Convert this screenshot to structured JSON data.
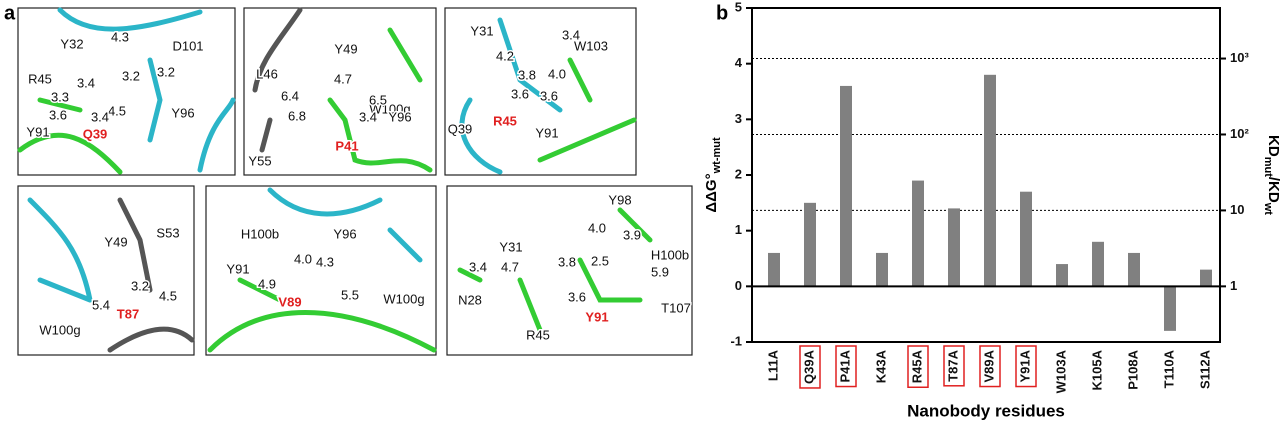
{
  "panel_a": {
    "letter": "a",
    "panels": [
      {
        "labels": [
          "Y32",
          "D101",
          "R45",
          "Y96",
          "Y91",
          "Q39",
          "4.3",
          "3.4",
          "3.2",
          "3.2",
          "3.3",
          "4.5",
          "3.6",
          "3.4"
        ],
        "key": "Q39"
      },
      {
        "labels": [
          "Y49",
          "L46",
          "W100g",
          "Y55",
          "P41",
          "4.7",
          "6.4",
          "6.5",
          "6.8",
          "3.4",
          "Y96"
        ],
        "key": "P41"
      },
      {
        "labels": [
          "Y31",
          "3.4",
          "W103",
          "4.2",
          "3.8",
          "4.0",
          "3.6",
          "3.6",
          "Q39",
          "R45",
          "Y91"
        ],
        "key": "R45"
      },
      {
        "labels": [
          "Y49",
          "S53",
          "3.2",
          "W100g",
          "5.4",
          "4.5",
          "T87"
        ],
        "key": "T87"
      },
      {
        "labels": [
          "H100b",
          "Y96",
          "4.0",
          "4.3",
          "Y91",
          "4.9",
          "V89",
          "5.5",
          "W100g"
        ],
        "key": "V89"
      },
      {
        "labels": [
          "Y98",
          "Y31",
          "4.0",
          "3.9",
          "H100b",
          "2.5",
          "3.8",
          "3.4",
          "4.7",
          "5.9",
          "N28",
          "3.6",
          "Y91",
          "T107",
          "R45"
        ],
        "key": "Y91"
      }
    ]
  },
  "chart_data": {
    "type": "bar",
    "letter": "b",
    "ylabel": "ΔΔG°",
    "ylabel_sub": "wt-mut",
    "y2label": [
      "KD",
      "mut",
      "/KD",
      "wt"
    ],
    "xlabel": "Nanobody residues",
    "categories": [
      "L11A",
      "Q39A",
      "P41A",
      "K43A",
      "R45A",
      "T87A",
      "V89A",
      "Y91A",
      "W103A",
      "K105A",
      "P108A",
      "T110A",
      "S112A"
    ],
    "boxed": [
      false,
      true,
      true,
      false,
      true,
      true,
      true,
      true,
      false,
      false,
      false,
      false,
      false
    ],
    "values": [
      0.6,
      1.5,
      3.6,
      0.6,
      1.9,
      1.4,
      3.8,
      1.7,
      0.4,
      0.8,
      0.6,
      -0.8,
      0.3
    ],
    "color": "#808080",
    "box_color": "#e02020",
    "ylim": [
      -1,
      5
    ],
    "yticks": [
      -1,
      0,
      1,
      2,
      3,
      4,
      5
    ],
    "y2scale": "log",
    "y2lim": [
      0.185,
      4630
    ],
    "y2ticks": [
      1,
      10,
      {
        "value": 100,
        "label": "10²"
      },
      {
        "value": 1000,
        "label": "10³"
      }
    ],
    "grid2": true
  }
}
